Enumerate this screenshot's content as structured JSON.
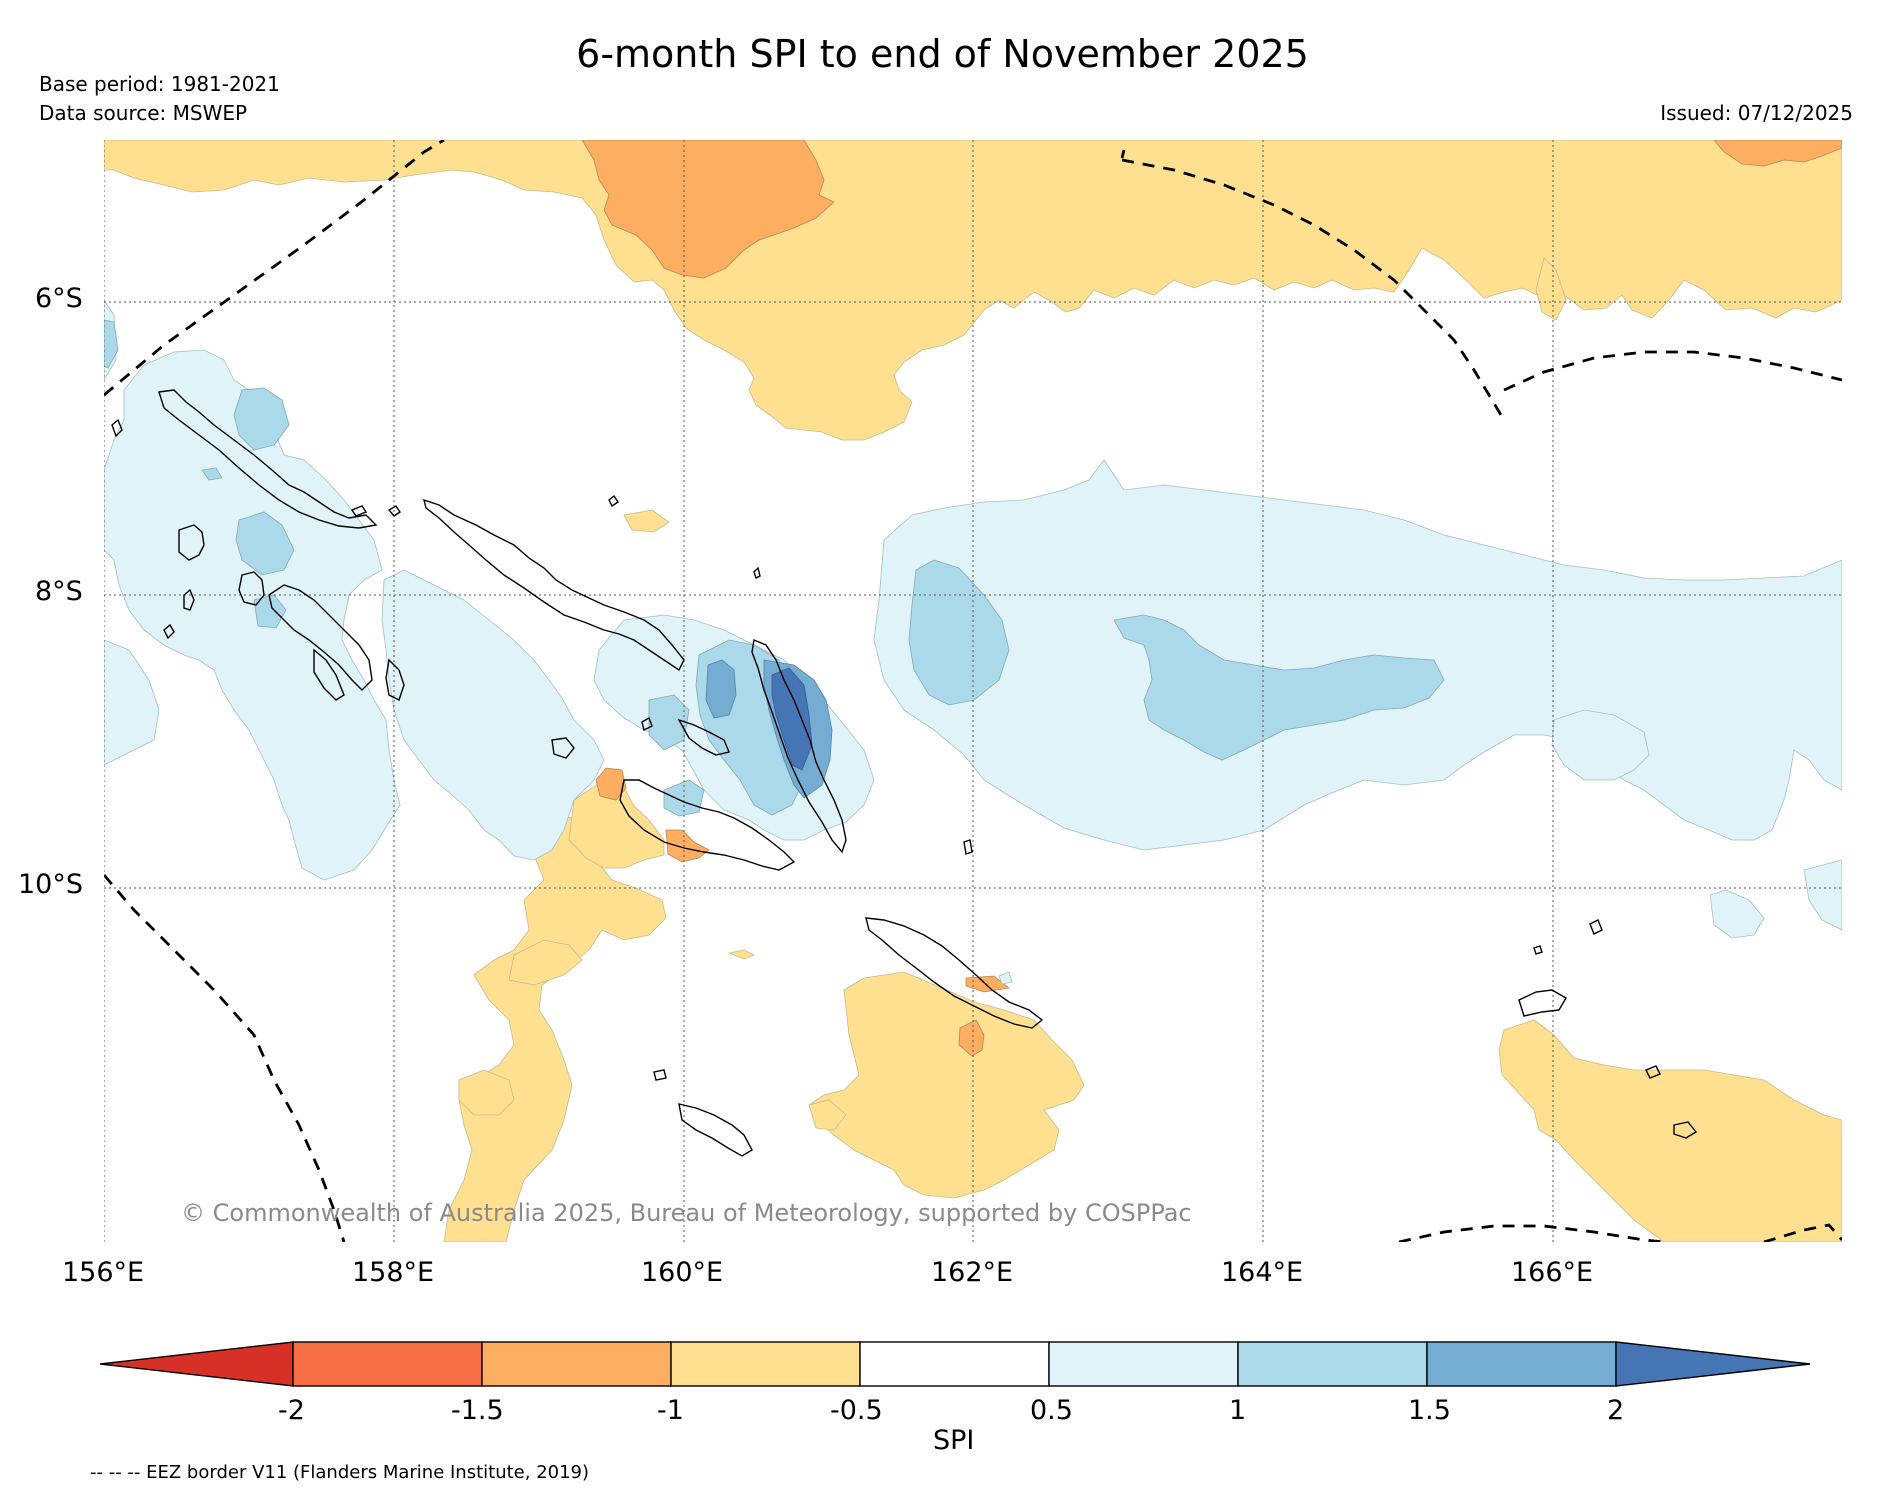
{
  "header": {
    "title": "6-month SPI to end of November 2025",
    "base_period": "Base period: 1981-2021",
    "data_source": "Data source: MSWEP",
    "issued": "Issued: 07/12/2025"
  },
  "map": {
    "lat_ticks": [
      "6°S",
      "8°S",
      "10°S"
    ],
    "lon_ticks": [
      "156°E",
      "158°E",
      "160°E",
      "162°E",
      "164°E",
      "166°E"
    ],
    "copyright": "© Commonwealth of Australia 2025, Bureau of Meteorology, supported by COSPPac",
    "colors": {
      "dry_2": "#d73027",
      "dry_15": "#f46d43",
      "dry_1": "#fdae61",
      "dry_05": "#fee090",
      "neutral": "#ffffff",
      "wet_05": "#e0f3f8",
      "wet_1": "#abd9e9",
      "wet_15": "#74add1",
      "wet_2": "#4575b4"
    }
  },
  "colorbar": {
    "labels": [
      "-2",
      "-1.5",
      "-1",
      "-0.5",
      "0.5",
      "1",
      "1.5",
      "2"
    ],
    "title": "SPI"
  },
  "footnote": "-- -- -- EEZ border V11 (Flanders Marine Institute, 2019)"
}
